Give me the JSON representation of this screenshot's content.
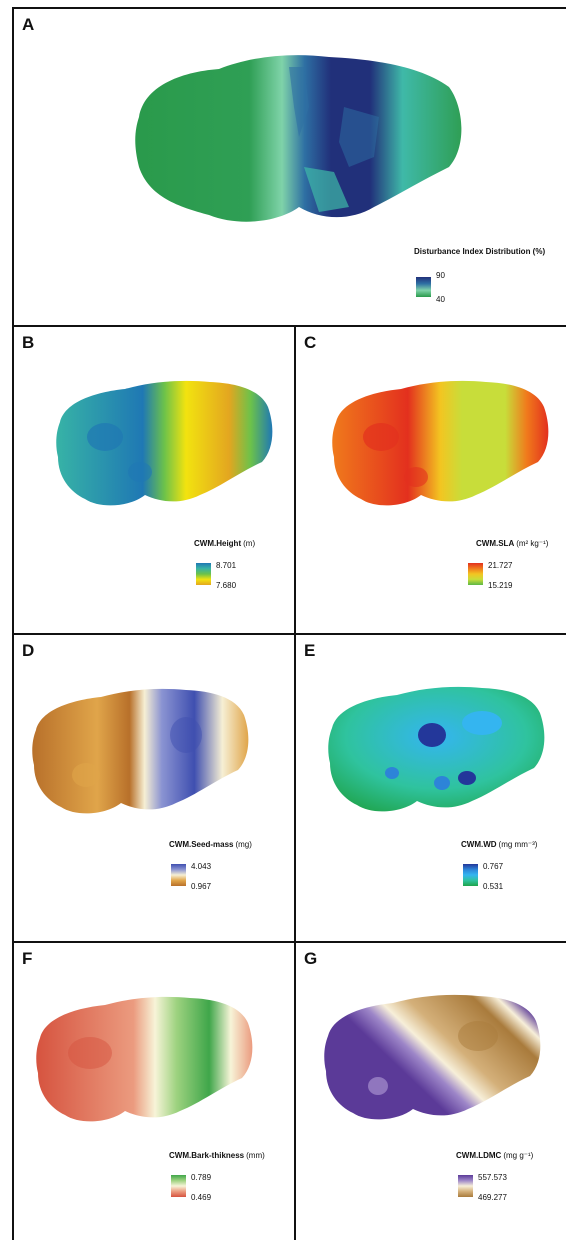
{
  "panels": {
    "A": {
      "letter": "A",
      "legend_title": "Disturbance Index Distribution (%)",
      "legend_unit": "",
      "max": "90",
      "min": "40",
      "colors": [
        "#21307a",
        "#2e6fa3",
        "#3fb9a8",
        "#7fd3a9",
        "#2a9a4b"
      ]
    },
    "B": {
      "letter": "B",
      "legend_title": "CWM.Height",
      "legend_unit": "(m)",
      "max": "8.701",
      "min": "7.680",
      "colors": [
        "#1f78b4",
        "#37b3a6",
        "#6cc24a",
        "#f2e30f",
        "#e3a620"
      ]
    },
    "C": {
      "letter": "C",
      "legend_title": "CWM.SLA",
      "legend_unit": "(m² kg⁻¹)",
      "max": "21.727",
      "min": "15.219",
      "colors": [
        "#e3301e",
        "#f07a1c",
        "#f3c521",
        "#c8dd3a",
        "#5cb746"
      ]
    },
    "D": {
      "letter": "D",
      "legend_title": "CWM.Seed-mass",
      "legend_unit": "(mg)",
      "max": "4.043",
      "min": "0.967",
      "colors": [
        "#3f4fb0",
        "#8a93d2",
        "#f6efd4",
        "#e0a54a",
        "#b8702a"
      ]
    },
    "E": {
      "letter": "E",
      "legend_title": "CWM.WD",
      "legend_unit": "(mg mm⁻³)",
      "max": "0.767",
      "min": "0.531",
      "colors": [
        "#23379a",
        "#2d84d8",
        "#34b5f0",
        "#2fc39e",
        "#1fa34a"
      ]
    },
    "F": {
      "letter": "F",
      "legend_title": "CWM.Bark-thikness",
      "legend_unit": "(mm)",
      "max": "0.789",
      "min": "0.469",
      "colors": [
        "#3fa64a",
        "#9dd27f",
        "#f7f4d8",
        "#eb9b7f",
        "#d6533f"
      ]
    },
    "G": {
      "letter": "G",
      "legend_title": "CWM.LDMC",
      "legend_unit": "(mg g⁻¹)",
      "max": "557.573",
      "min": "469.277",
      "colors": [
        "#5b3a98",
        "#9d86c8",
        "#f7efd9",
        "#d4b07a",
        "#a97b3c"
      ]
    }
  }
}
